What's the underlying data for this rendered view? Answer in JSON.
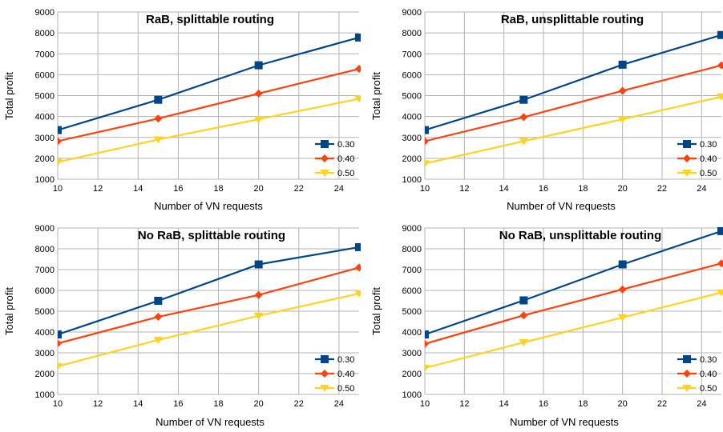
{
  "chart_data": [
    {
      "type": "line",
      "title": "RaB, splittable routing",
      "xlabel": "Number of VN requests",
      "ylabel": "Total profit",
      "x": [
        10,
        15,
        20,
        25
      ],
      "xlim": [
        10,
        25
      ],
      "ylim": [
        1000,
        9000
      ],
      "xticks": [
        10,
        12,
        14,
        16,
        18,
        20,
        22,
        24
      ],
      "yticks": [
        1000,
        2000,
        3000,
        4000,
        5000,
        6000,
        7000,
        8000,
        9000
      ],
      "grid": true,
      "legend_position": "bottom-right",
      "series": [
        {
          "name": "0.30",
          "marker": "square",
          "color": "#004586",
          "values": [
            3350,
            4800,
            6450,
            7780
          ]
        },
        {
          "name": "0.40",
          "marker": "diamond",
          "color": "#ff420e",
          "values": [
            2820,
            3900,
            5100,
            6280
          ]
        },
        {
          "name": "0.50",
          "marker": "triangle-down",
          "color": "#ffd320",
          "values": [
            1820,
            2900,
            3870,
            4850
          ]
        }
      ]
    },
    {
      "type": "line",
      "title": "RaB, unsplittable routing",
      "xlabel": "Number of VN requests",
      "ylabel": "Total profit",
      "x": [
        10,
        15,
        20,
        25
      ],
      "xlim": [
        10,
        25
      ],
      "ylim": [
        1000,
        9000
      ],
      "xticks": [
        10,
        12,
        14,
        16,
        18,
        20,
        22,
        24
      ],
      "yticks": [
        1000,
        2000,
        3000,
        4000,
        5000,
        6000,
        7000,
        8000,
        9000
      ],
      "grid": true,
      "legend_position": "bottom-right",
      "series": [
        {
          "name": "0.30",
          "marker": "square",
          "color": "#004586",
          "values": [
            3350,
            4800,
            6480,
            7900
          ]
        },
        {
          "name": "0.40",
          "marker": "diamond",
          "color": "#ff420e",
          "values": [
            2820,
            3970,
            5230,
            6450
          ]
        },
        {
          "name": "0.50",
          "marker": "triangle-down",
          "color": "#ffd320",
          "values": [
            1750,
            2820,
            3870,
            4950
          ]
        }
      ]
    },
    {
      "type": "line",
      "title": "No RaB, splittable routing",
      "xlabel": "Number of VN requests",
      "ylabel": "Total profit",
      "x": [
        10,
        15,
        20,
        25
      ],
      "xlim": [
        10,
        25
      ],
      "ylim": [
        1000,
        9000
      ],
      "xticks": [
        10,
        12,
        14,
        16,
        18,
        20,
        22,
        24
      ],
      "yticks": [
        1000,
        2000,
        3000,
        4000,
        5000,
        6000,
        7000,
        8000,
        9000
      ],
      "grid": true,
      "legend_position": "bottom-right",
      "series": [
        {
          "name": "0.30",
          "marker": "square",
          "color": "#004586",
          "values": [
            3880,
            5500,
            7250,
            8080
          ]
        },
        {
          "name": "0.40",
          "marker": "diamond",
          "color": "#ff420e",
          "values": [
            3450,
            4730,
            5780,
            7100
          ]
        },
        {
          "name": "0.50",
          "marker": "triangle-down",
          "color": "#ffd320",
          "values": [
            2350,
            3620,
            4780,
            5850
          ]
        }
      ]
    },
    {
      "type": "line",
      "title": "No RaB, unsplittable routing",
      "xlabel": "Number of VN requests",
      "ylabel": "Total profit",
      "x": [
        10,
        15,
        20,
        25
      ],
      "xlim": [
        10,
        25
      ],
      "ylim": [
        1000,
        9000
      ],
      "xticks": [
        10,
        12,
        14,
        16,
        18,
        20,
        22,
        24
      ],
      "yticks": [
        1000,
        2000,
        3000,
        4000,
        5000,
        6000,
        7000,
        8000,
        9000
      ],
      "grid": true,
      "legend_position": "bottom-right",
      "series": [
        {
          "name": "0.30",
          "marker": "square",
          "color": "#004586",
          "values": [
            3880,
            5520,
            7250,
            8850
          ]
        },
        {
          "name": "0.40",
          "marker": "diamond",
          "color": "#ff420e",
          "values": [
            3430,
            4800,
            6050,
            7300
          ]
        },
        {
          "name": "0.50",
          "marker": "triangle-down",
          "color": "#ffd320",
          "values": [
            2270,
            3500,
            4700,
            5900
          ]
        }
      ]
    }
  ]
}
